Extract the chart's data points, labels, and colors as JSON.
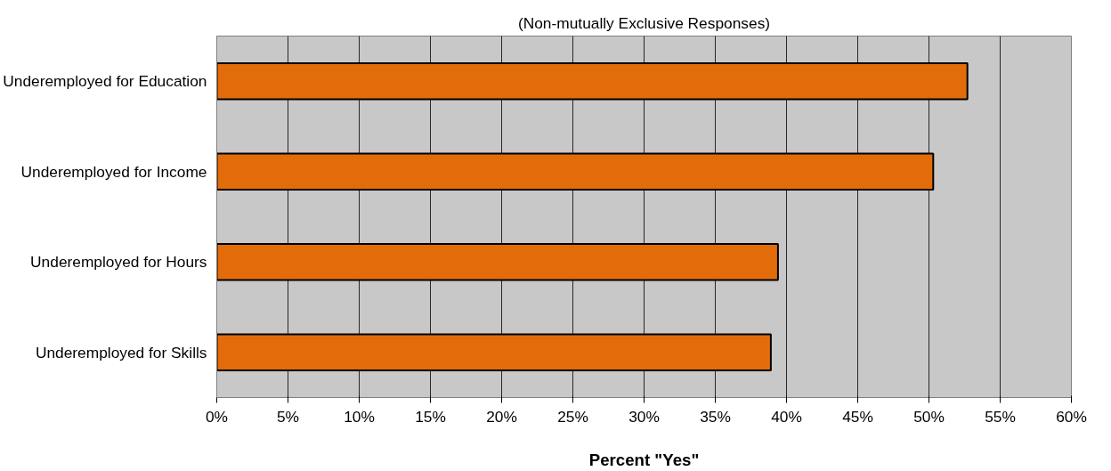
{
  "chart_data": {
    "type": "bar",
    "orientation": "horizontal",
    "title": "(Non-mutually Exclusive Responses)",
    "xlabel": "Percent \"Yes\"",
    "categories": [
      "Underemployed for Education",
      "Underemployed for Income",
      "Underemployed for Hours",
      "Underemployed for Skills"
    ],
    "values": [
      52.7,
      50.3,
      39.4,
      38.9
    ],
    "color": "#e36c0a",
    "xlim": [
      0,
      60
    ],
    "xticks": [
      {
        "value": 0,
        "label": "0%"
      },
      {
        "value": 5,
        "label": "5%"
      },
      {
        "value": 10,
        "label": "10%"
      },
      {
        "value": 15,
        "label": "15%"
      },
      {
        "value": 20,
        "label": "20%"
      },
      {
        "value": 25,
        "label": "25%"
      },
      {
        "value": 30,
        "label": "30%"
      },
      {
        "value": 35,
        "label": "35%"
      },
      {
        "value": 40,
        "label": "40%"
      },
      {
        "value": 45,
        "label": "45%"
      },
      {
        "value": 50,
        "label": "50%"
      },
      {
        "value": 55,
        "label": "55%"
      },
      {
        "value": 60,
        "label": "60%"
      }
    ],
    "grid": "x"
  }
}
